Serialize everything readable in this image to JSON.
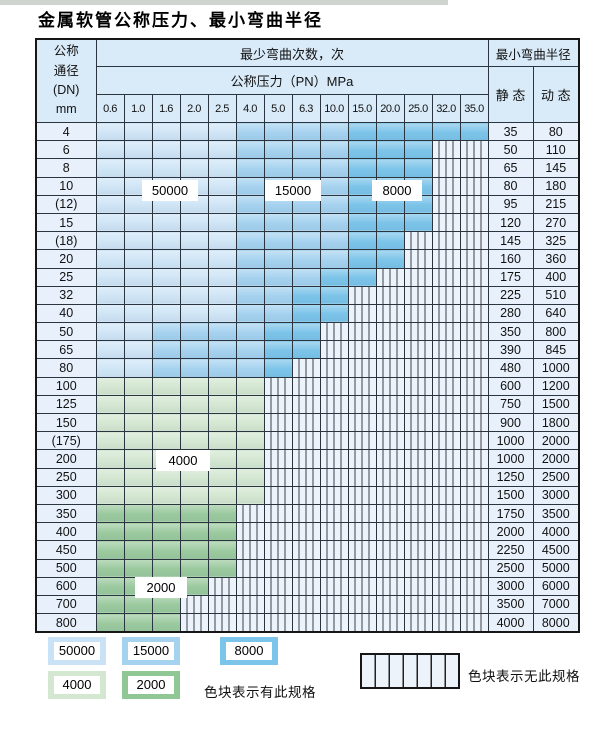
{
  "title": "金属软管公称压力、最小弯曲半径",
  "table": {
    "dn_header_lines": [
      "公称",
      "通径",
      "(DN)",
      "mm"
    ],
    "bend_count_header": "最少弯曲次数，次",
    "pressure_header": "公称压力（PN）MPa",
    "pressure_columns": [
      "0.6",
      "1.0",
      "1.6",
      "2.0",
      "2.5",
      "4.0",
      "5.0",
      "6.3",
      "10.0",
      "15.0",
      "20.0",
      "25.0",
      "32.0",
      "35.0"
    ],
    "radius_header": "最小弯曲半径",
    "static_header": "静 态",
    "dynamic_header": "动 态",
    "shade_legend": {
      "l": "50000次区域",
      "m": "15000次区域",
      "d": "8000次区域",
      "g": "4000次区域",
      "G": "2000次区域",
      "x": "无此规格"
    },
    "rows": [
      {
        "dn": "4",
        "cells": "lllllmmmmddddd",
        "static": "35",
        "dynamic": "80"
      },
      {
        "dn": "6",
        "cells": "lllllmmmmdddxx",
        "static": "50",
        "dynamic": "110"
      },
      {
        "dn": "8",
        "cells": "lllllmmmmdddxx",
        "static": "65",
        "dynamic": "145"
      },
      {
        "dn": "10",
        "cells": "lllllmmmmdddxx",
        "static": "80",
        "dynamic": "180"
      },
      {
        "dn": "(12)",
        "cells": "lllllmmmmdddxx",
        "static": "95",
        "dynamic": "215"
      },
      {
        "dn": "15",
        "cells": "lllllmmmmdddxx",
        "static": "120",
        "dynamic": "270"
      },
      {
        "dn": "(18)",
        "cells": "lllllmmmmddxxx",
        "static": "145",
        "dynamic": "325"
      },
      {
        "dn": "20",
        "cells": "lllllmmmmddxxx",
        "static": "160",
        "dynamic": "360"
      },
      {
        "dn": "25",
        "cells": "lllllmmmddxxxx",
        "static": "175",
        "dynamic": "400"
      },
      {
        "dn": "32",
        "cells": "lllllmmddxxxxx",
        "static": "225",
        "dynamic": "510"
      },
      {
        "dn": "40",
        "cells": "lllllmmddxxxxx",
        "static": "280",
        "dynamic": "640"
      },
      {
        "dn": "50",
        "cells": "llmmmmddxxxxxx",
        "static": "350",
        "dynamic": "800"
      },
      {
        "dn": "65",
        "cells": "llmmmmddxxxxxx",
        "static": "390",
        "dynamic": "845"
      },
      {
        "dn": "80",
        "cells": "llmmmmdxxxxxxx",
        "static": "480",
        "dynamic": "1000"
      },
      {
        "dn": "100",
        "cells": "ggggggxxxxxxxx",
        "static": "600",
        "dynamic": "1200"
      },
      {
        "dn": "125",
        "cells": "ggggggxxxxxxxx",
        "static": "750",
        "dynamic": "1500"
      },
      {
        "dn": "150",
        "cells": "ggggggxxxxxxxx",
        "static": "900",
        "dynamic": "1800"
      },
      {
        "dn": "(175)",
        "cells": "ggggggxxxxxxxx",
        "static": "1000",
        "dynamic": "2000"
      },
      {
        "dn": "200",
        "cells": "ggggggxxxxxxxx",
        "static": "1000",
        "dynamic": "2000"
      },
      {
        "dn": "250",
        "cells": "ggggggxxxxxxxx",
        "static": "1250",
        "dynamic": "2500"
      },
      {
        "dn": "300",
        "cells": "ggggggxxxxxxxx",
        "static": "1500",
        "dynamic": "3000"
      },
      {
        "dn": "350",
        "cells": "GGGGGxxxxxxxxx",
        "static": "1750",
        "dynamic": "3500"
      },
      {
        "dn": "400",
        "cells": "GGGGGxxxxxxxxx",
        "static": "2000",
        "dynamic": "4000"
      },
      {
        "dn": "450",
        "cells": "GGGGGxxxxxxxxx",
        "static": "2250",
        "dynamic": "4500"
      },
      {
        "dn": "500",
        "cells": "GGGGGxxxxxxxxx",
        "static": "2500",
        "dynamic": "5000"
      },
      {
        "dn": "600",
        "cells": "GGGGxxxxxxxxxx",
        "static": "3000",
        "dynamic": "6000"
      },
      {
        "dn": "700",
        "cells": "GGGxxxxxxxxxxx",
        "static": "3500",
        "dynamic": "7000"
      },
      {
        "dn": "800",
        "cells": "GGGxxxxxxxxxxx",
        "static": "4000",
        "dynamic": "8000"
      }
    ]
  },
  "region_labels": [
    {
      "text": "50000"
    },
    {
      "text": "15000"
    },
    {
      "text": "8000"
    },
    {
      "text": "4000"
    },
    {
      "text": "2000"
    }
  ],
  "legend": {
    "swatches": [
      {
        "label": "50000",
        "color": "#c9e2f5"
      },
      {
        "label": "15000",
        "color": "#a5d2ef"
      },
      {
        "label": "8000",
        "color": "#7cc4e9"
      },
      {
        "label": "4000",
        "color": "#d3e7d1"
      },
      {
        "label": "2000",
        "color": "#8fc795"
      }
    ],
    "has_spec_text": "色块表示有此规格",
    "no_spec_text": "色块表示无此规格"
  },
  "colors": {
    "l": "#cfe5f6",
    "m": "#a5d2ef",
    "d": "#7cc4e9",
    "g": "#d3e7d1",
    "G": "#9bca9e",
    "header_bg": "#d9ebf9",
    "label_col_bg": "#e8f1fb",
    "no_spec_bg": "#edf3fb",
    "grid_line": "#2b3540"
  }
}
